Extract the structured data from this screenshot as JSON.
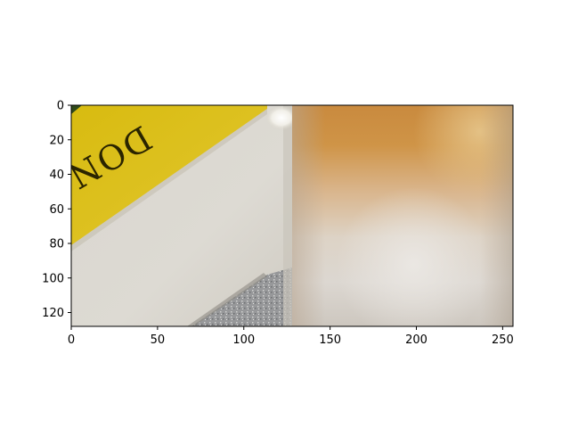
{
  "chart_data": {
    "type": "image",
    "xlim": [
      0,
      256
    ],
    "ylim": [
      128,
      0
    ],
    "y_inverted": true,
    "x_ticks": [
      0,
      50,
      100,
      150,
      200,
      250
    ],
    "y_ticks": [
      0,
      20,
      40,
      60,
      80,
      100,
      120
    ],
    "grid": false,
    "panels": [
      {
        "name": "left-photo",
        "x_range": [
          0,
          128
        ],
        "description_colors": {
          "banner": "#ddc21a",
          "banner_shade": "#cfb10f",
          "paper": "#dcd9d2",
          "glitter": "#9c9d9b",
          "lamp": "#f4f3ee"
        },
        "visible_text": "DON"
      },
      {
        "name": "right-blurred-photo",
        "x_range": [
          128,
          256
        ],
        "description_colors": {
          "top": "#c9863c",
          "middle": "#dab98f",
          "bottom": "#d8d3cc"
        }
      }
    ]
  }
}
